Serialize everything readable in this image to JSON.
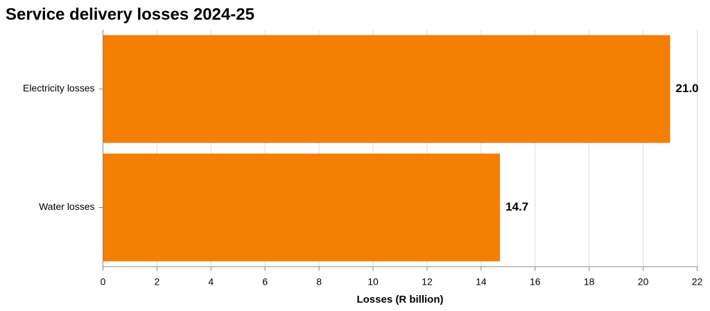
{
  "chart_data": {
    "type": "hbar",
    "title": "Service delivery losses 2024-25",
    "categories": [
      "Electricity losses",
      "Water losses"
    ],
    "values": [
      21,
      14.7
    ],
    "value_labels": [
      "21.0",
      "14.7"
    ],
    "color": "#f57f00",
    "x_label": "Losses (R billion)",
    "xlim": [
      0,
      22
    ],
    "xticks": [
      0,
      2,
      4,
      6,
      8,
      10,
      12,
      14,
      16,
      18,
      20,
      22
    ],
    "grid": true
  }
}
